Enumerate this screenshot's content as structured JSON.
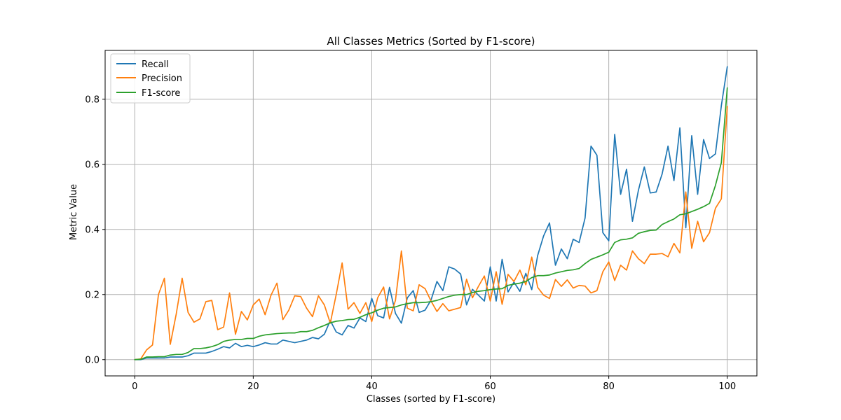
{
  "chart_data": {
    "type": "line",
    "title": "All Classes Metrics (Sorted by F1-score)",
    "xlabel": "Classes (sorted by F1-score)",
    "ylabel": "Metric Value",
    "xlim": [
      -5,
      105
    ],
    "ylim": [
      -0.05,
      0.95
    ],
    "x_ticks": [
      0,
      20,
      40,
      60,
      80,
      100
    ],
    "y_ticks": [
      0.0,
      0.2,
      0.4,
      0.6,
      0.8
    ],
    "x_tick_labels": [
      "0",
      "20",
      "40",
      "60",
      "80",
      "100"
    ],
    "y_tick_labels": [
      "0.0",
      "0.2",
      "0.4",
      "0.6",
      "0.8"
    ],
    "grid": true,
    "legend_position": "top-left",
    "colors": {
      "Recall": "#1f77b4",
      "Precision": "#ff7f0e",
      "F1-score": "#2ca02c"
    },
    "x": [
      0,
      1,
      2,
      3,
      4,
      5,
      6,
      7,
      8,
      9,
      10,
      11,
      12,
      13,
      14,
      15,
      16,
      17,
      18,
      19,
      20,
      21,
      22,
      23,
      24,
      25,
      26,
      27,
      28,
      29,
      30,
      31,
      32,
      33,
      34,
      35,
      36,
      37,
      38,
      39,
      40,
      41,
      42,
      43,
      44,
      45,
      46,
      47,
      48,
      49,
      50,
      51,
      52,
      53,
      54,
      55,
      56,
      57,
      58,
      59,
      60,
      61,
      62,
      63,
      64,
      65,
      66,
      67,
      68,
      69,
      70,
      71,
      72,
      73,
      74,
      75,
      76,
      77,
      78,
      79,
      80,
      81,
      82,
      83,
      84,
      85,
      86,
      87,
      88,
      89,
      90,
      91,
      92,
      93,
      94,
      95,
      96,
      97,
      98,
      99,
      100
    ],
    "series": [
      {
        "name": "Recall",
        "values": [
          0.0,
          0.0,
          0.005,
          0.005,
          0.005,
          0.005,
          0.008,
          0.008,
          0.008,
          0.012,
          0.02,
          0.02,
          0.02,
          0.025,
          0.032,
          0.04,
          0.036,
          0.05,
          0.04,
          0.044,
          0.04,
          0.045,
          0.052,
          0.048,
          0.048,
          0.06,
          0.056,
          0.052,
          0.056,
          0.06,
          0.068,
          0.064,
          0.078,
          0.12,
          0.085,
          0.076,
          0.105,
          0.097,
          0.128,
          0.117,
          0.188,
          0.135,
          0.128,
          0.222,
          0.142,
          0.112,
          0.19,
          0.212,
          0.145,
          0.152,
          0.183,
          0.24,
          0.212,
          0.285,
          0.278,
          0.263,
          0.168,
          0.216,
          0.198,
          0.18,
          0.285,
          0.18,
          0.308,
          0.208,
          0.238,
          0.21,
          0.265,
          0.215,
          0.32,
          0.38,
          0.42,
          0.29,
          0.34,
          0.31,
          0.37,
          0.36,
          0.435,
          0.656,
          0.628,
          0.39,
          0.365,
          0.692,
          0.508,
          0.585,
          0.425,
          0.52,
          0.592,
          0.512,
          0.515,
          0.57,
          0.656,
          0.55,
          0.712,
          0.405,
          0.688,
          0.508,
          0.676,
          0.618,
          0.632,
          0.78,
          0.9
        ]
      },
      {
        "name": "Precision",
        "values": [
          0.0,
          0.002,
          0.03,
          0.045,
          0.2,
          0.25,
          0.047,
          0.14,
          0.25,
          0.145,
          0.115,
          0.125,
          0.178,
          0.182,
          0.092,
          0.1,
          0.205,
          0.078,
          0.148,
          0.122,
          0.168,
          0.186,
          0.138,
          0.198,
          0.235,
          0.123,
          0.152,
          0.196,
          0.194,
          0.158,
          0.132,
          0.196,
          0.168,
          0.112,
          0.2,
          0.297,
          0.155,
          0.175,
          0.142,
          0.175,
          0.117,
          0.19,
          0.223,
          0.125,
          0.182,
          0.334,
          0.158,
          0.15,
          0.23,
          0.218,
          0.18,
          0.148,
          0.172,
          0.15,
          0.155,
          0.16,
          0.247,
          0.19,
          0.225,
          0.257,
          0.18,
          0.27,
          0.17,
          0.262,
          0.24,
          0.275,
          0.23,
          0.315,
          0.222,
          0.198,
          0.188,
          0.246,
          0.225,
          0.245,
          0.22,
          0.228,
          0.226,
          0.205,
          0.212,
          0.27,
          0.3,
          0.243,
          0.29,
          0.275,
          0.334,
          0.31,
          0.295,
          0.324,
          0.324,
          0.326,
          0.316,
          0.357,
          0.328,
          0.515,
          0.342,
          0.425,
          0.362,
          0.39,
          0.465,
          0.494,
          0.778
        ]
      },
      {
        "name": "F1-score",
        "values": [
          0.0,
          0.001,
          0.008,
          0.008,
          0.009,
          0.009,
          0.014,
          0.016,
          0.016,
          0.022,
          0.034,
          0.034,
          0.036,
          0.04,
          0.046,
          0.056,
          0.06,
          0.062,
          0.062,
          0.065,
          0.065,
          0.072,
          0.076,
          0.078,
          0.08,
          0.081,
          0.082,
          0.082,
          0.086,
          0.086,
          0.09,
          0.098,
          0.105,
          0.113,
          0.118,
          0.12,
          0.123,
          0.124,
          0.13,
          0.138,
          0.144,
          0.152,
          0.158,
          0.16,
          0.162,
          0.168,
          0.172,
          0.175,
          0.175,
          0.176,
          0.178,
          0.182,
          0.188,
          0.194,
          0.198,
          0.2,
          0.2,
          0.206,
          0.21,
          0.212,
          0.215,
          0.217,
          0.218,
          0.228,
          0.232,
          0.235,
          0.24,
          0.252,
          0.258,
          0.258,
          0.26,
          0.266,
          0.27,
          0.274,
          0.276,
          0.28,
          0.295,
          0.308,
          0.315,
          0.322,
          0.33,
          0.36,
          0.368,
          0.37,
          0.374,
          0.388,
          0.393,
          0.397,
          0.398,
          0.415,
          0.424,
          0.432,
          0.445,
          0.448,
          0.455,
          0.462,
          0.47,
          0.48,
          0.535,
          0.605,
          0.835
        ]
      }
    ]
  }
}
